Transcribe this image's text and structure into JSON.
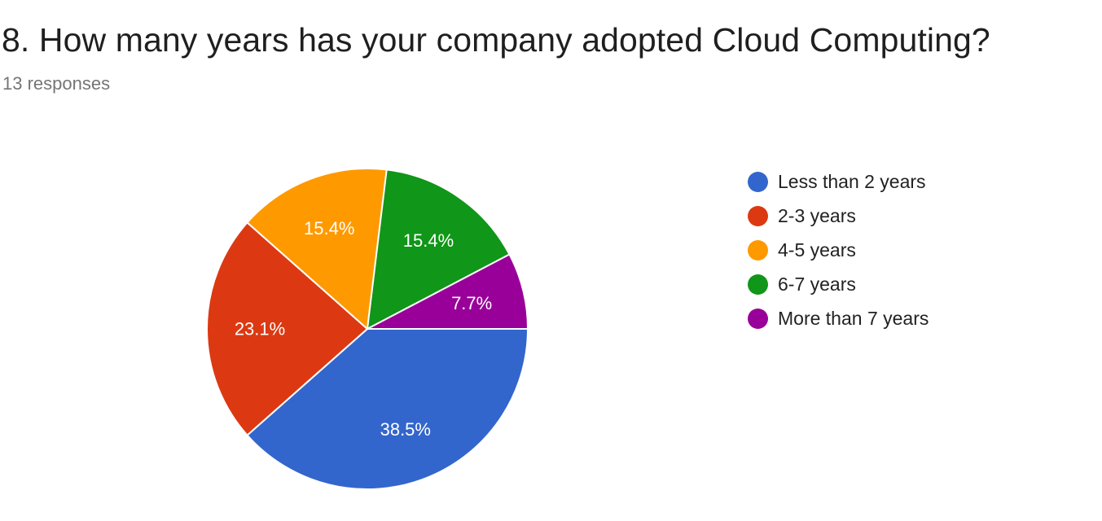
{
  "header": {
    "title": "8. How many years has your company adopted Cloud Computing?",
    "subtitle": "13 responses"
  },
  "chart_data": {
    "type": "pie",
    "title": "8. How many years has your company adopted Cloud Computing?",
    "subtitle": "13 responses",
    "categories": [
      "Less than 2 years",
      "2-3 years",
      "4-5 years",
      "6-7 years",
      "More than 7 years"
    ],
    "values": [
      5,
      3,
      2,
      2,
      1
    ],
    "percent_labels": [
      "38.5%",
      "23.1%",
      "15.4%",
      "15.4%",
      "7.7%"
    ],
    "colors": [
      "#3366cc",
      "#dc3912",
      "#ff9900",
      "#109618",
      "#990099"
    ],
    "legend_position": "right"
  }
}
